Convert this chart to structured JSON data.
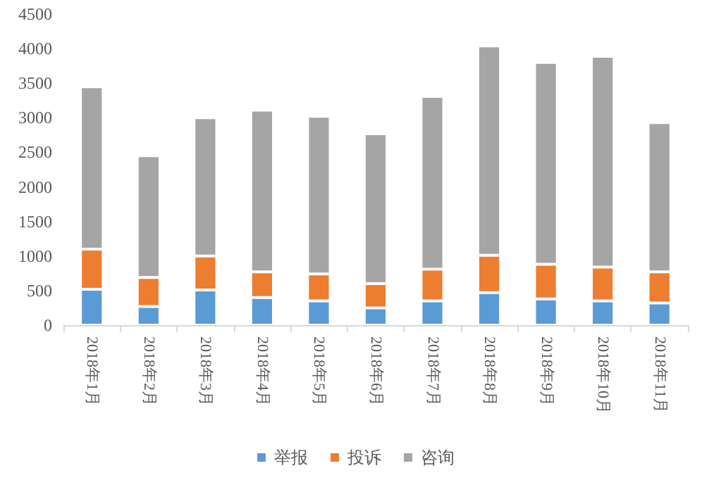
{
  "chart_data": {
    "type": "bar",
    "stacked": true,
    "categories": [
      "2018年1月",
      "2018年2月",
      "2018年3月",
      "2018年4月",
      "2018年5月",
      "2018年6月",
      "2018年7月",
      "2018年8月",
      "2018年9月",
      "2018年10月",
      "2018年11月"
    ],
    "series": [
      {
        "name": "举报",
        "color": "#5b9bd5",
        "values": [
          520,
          270,
          510,
          400,
          350,
          250,
          350,
          470,
          380,
          350,
          320
        ]
      },
      {
        "name": "投诉",
        "color": "#ed7d31",
        "values": [
          580,
          420,
          490,
          370,
          390,
          350,
          460,
          540,
          500,
          490,
          450
        ]
      },
      {
        "name": "咨询",
        "color": "#a5a5a5",
        "values": [
          2350,
          1760,
          2000,
          2340,
          2280,
          2170,
          2500,
          3030,
          2920,
          3050,
          2160
        ]
      }
    ],
    "ylim": [
      0,
      4500
    ],
    "yticks": [
      0,
      500,
      1000,
      1500,
      2000,
      2500,
      3000,
      3500,
      4000,
      4500
    ],
    "grid": false,
    "legend": "bottom"
  }
}
